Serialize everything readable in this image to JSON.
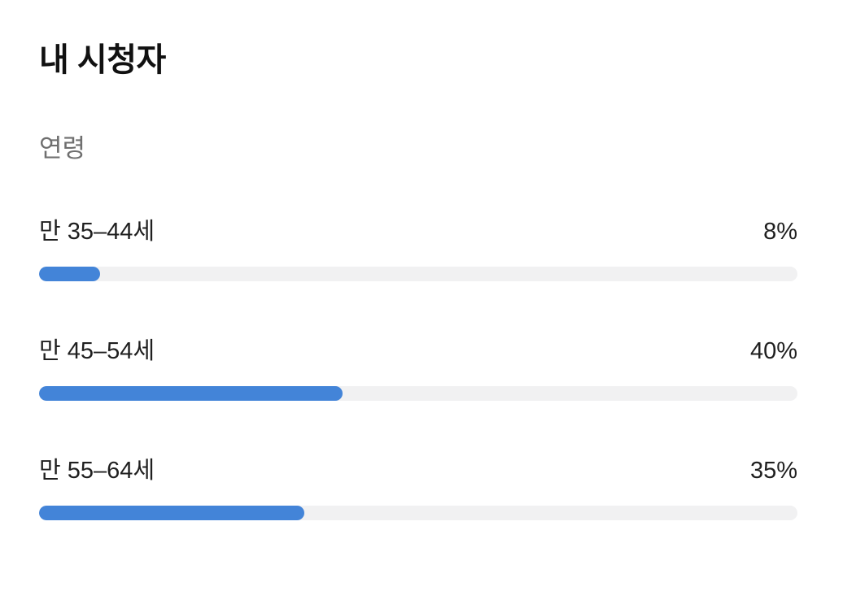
{
  "page": {
    "title": "내 시청자",
    "section_label": "연령"
  },
  "colors": {
    "bar_fill": "#4384d8",
    "bar_track": "#f1f1f2",
    "title_text": "#111111",
    "section_text": "#6f6f6f",
    "label_text": "#1f1f1f",
    "background": "#ffffff"
  },
  "chart_data": {
    "type": "bar",
    "orientation": "horizontal",
    "title": "내 시청자",
    "subtitle": "연령",
    "categories": [
      "만 35–44세",
      "만 45–54세",
      "만 55–64세"
    ],
    "values": [
      8,
      40,
      35
    ],
    "value_labels": [
      "8%",
      "40%",
      "35%"
    ],
    "unit": "%",
    "xlim": [
      0,
      100
    ],
    "grid": false,
    "legend": false
  }
}
